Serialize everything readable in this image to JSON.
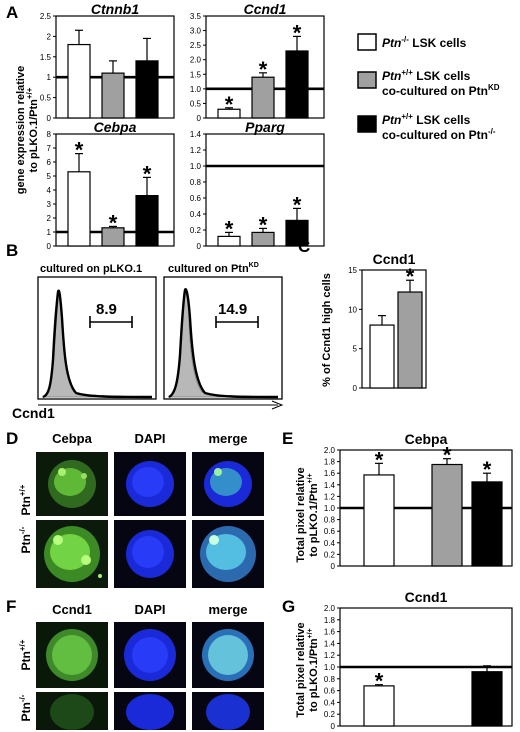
{
  "panel_letters": {
    "A": "A",
    "B": "B",
    "C": "C",
    "D": "D",
    "E": "E",
    "F": "F",
    "G": "G"
  },
  "panel_a": {
    "ylabel_line1": "gene expression relative",
    "ylabel_line2": "to pLKO.1/Ptn",
    "ylabel_sup": "+/+",
    "legend": [
      {
        "pre": "Ptn",
        "sup": "-/-",
        "post": " LSK cells",
        "line2": "",
        "line2_sup": "",
        "fill": "#ffffff"
      },
      {
        "pre": "Ptn",
        "sup": "+/+",
        "post": " LSK cells",
        "line2": "co-cultured on Ptn",
        "line2_sup": "KD",
        "fill": "#a0a0a0"
      },
      {
        "pre": "Ptn",
        "sup": "+/+",
        "post": " LSK cells",
        "line2": "co-cultured on Ptn",
        "line2_sup": "-/-",
        "fill": "#000000"
      }
    ]
  },
  "chart_data": [
    {
      "type": "bar",
      "panel": "A",
      "title": "Ctnnb1",
      "categories": [
        "Ptn-/- LSK",
        "Ptn+/+ on PtnKD",
        "Ptn+/+ on Ptn-/-"
      ],
      "values": [
        1.8,
        1.1,
        1.4
      ],
      "errors": [
        0.35,
        0.3,
        0.55
      ],
      "significant": [
        false,
        false,
        false
      ],
      "ylim": [
        0,
        2.5
      ],
      "ticks": [
        "0",
        "0.5",
        "1",
        "1.5",
        "2",
        "2.5"
      ],
      "reference_line": 1.0
    },
    {
      "type": "bar",
      "panel": "A",
      "title": "Ccnd1",
      "categories": [
        "Ptn-/- LSK",
        "Ptn+/+ on PtnKD",
        "Ptn+/+ on Ptn-/-"
      ],
      "values": [
        0.3,
        1.4,
        2.3
      ],
      "errors": [
        0.05,
        0.15,
        0.5
      ],
      "significant": [
        true,
        true,
        true
      ],
      "ylim": [
        0,
        3.5
      ],
      "ticks": [
        "0",
        "0.5",
        "1.0",
        "1.5",
        "2.0",
        "2.5",
        "3.0",
        "3.5"
      ],
      "reference_line": 1.0
    },
    {
      "type": "bar",
      "panel": "A",
      "title": "Cebpa",
      "categories": [
        "Ptn-/- LSK",
        "Ptn+/+ on PtnKD",
        "Ptn+/+ on Ptn-/-"
      ],
      "values": [
        5.3,
        1.3,
        3.6
      ],
      "errors": [
        1.3,
        0.1,
        1.3
      ],
      "significant": [
        true,
        true,
        true
      ],
      "ylim": [
        0,
        8
      ],
      "ticks": [
        "0",
        "1",
        "2",
        "3",
        "4",
        "5",
        "6",
        "7",
        "8"
      ],
      "reference_line": 1.0
    },
    {
      "type": "bar",
      "panel": "A",
      "title": "Pparg",
      "categories": [
        "Ptn-/- LSK",
        "Ptn+/+ on PtnKD",
        "Ptn+/+ on Ptn-/-"
      ],
      "values": [
        0.12,
        0.17,
        0.32
      ],
      "errors": [
        0.05,
        0.05,
        0.15
      ],
      "significant": [
        true,
        true,
        true
      ],
      "ylim": [
        0,
        1.4
      ],
      "ticks": [
        "0",
        "0.2",
        "0.4",
        "0.6",
        "0.8",
        "1.0",
        "1.2",
        "1.4"
      ],
      "reference_line": 1.0
    },
    {
      "type": "bar",
      "panel": "C",
      "title": "Ccnd1",
      "ylabel": "% of Ccnd1 high cells",
      "values": [
        8,
        12.2
      ],
      "errors": [
        1.2,
        1.5
      ],
      "fills": [
        "#ffffff",
        "#a0a0a0"
      ],
      "significant": [
        false,
        true
      ],
      "ylim": [
        0,
        15
      ],
      "ticks": [
        "0",
        "5",
        "10",
        "15"
      ]
    },
    {
      "type": "bar",
      "panel": "E",
      "title": "Cebpa",
      "values": [
        1.57,
        1.75,
        1.45
      ],
      "errors": [
        0.2,
        0.1,
        0.15
      ],
      "fills": [
        "#ffffff",
        "#a0a0a0",
        "#000000"
      ],
      "significant": [
        true,
        true,
        true
      ],
      "ylim": [
        0,
        2.0
      ],
      "ticks": [
        "0",
        "0.2",
        "0.4",
        "0.6",
        "0.8",
        "1.0",
        "1.2",
        "1.4",
        "1.6",
        "1.8",
        "2.0"
      ],
      "reference_line": 1.0
    },
    {
      "type": "bar",
      "panel": "G",
      "title": "Ccnd1",
      "values": [
        0.68,
        null,
        0.92
      ],
      "errors": [
        0.02,
        0,
        0.1
      ],
      "fills": [
        "#ffffff",
        "#a0a0a0",
        "#000000"
      ],
      "significant": [
        true,
        false,
        false
      ],
      "ylim": [
        0,
        2.0
      ],
      "ticks": [
        "0",
        "0.2",
        "0.4",
        "0.6",
        "0.8",
        "1.0",
        "1.2",
        "1.4",
        "1.6",
        "1.8",
        "2.0"
      ],
      "reference_line": 1.0
    }
  ],
  "panel_b": {
    "label_left": "cultured on pLKO.1",
    "label_right_pre": "cultured on Ptn",
    "label_right_sup": "KD",
    "value_left": "8.9",
    "value_right": "14.9",
    "xaxis_label": "Ccnd1"
  },
  "panel_e": {
    "ylabel_line1": "Total pixel relative",
    "ylabel_line2": "to pLKO.1/Ptn",
    "ylabel_sup": "+/+"
  },
  "panel_g": {
    "ylabel_line1": "Total pixel relative",
    "ylabel_line2": "to pLKO.1/Ptn",
    "ylabel_sup": "+/+"
  },
  "panel_d": {
    "columns": [
      "Cebpa",
      "DAPI",
      "merge"
    ],
    "rows": [
      {
        "pre": "Ptn",
        "sup": "+/+"
      },
      {
        "pre": "Ptn",
        "sup": "-/-"
      }
    ]
  },
  "panel_f": {
    "columns": [
      "Ccnd1",
      "DAPI",
      "merge"
    ],
    "rows": [
      {
        "pre": "Ptn",
        "sup": "+/+"
      },
      {
        "pre": "Ptn",
        "sup": "-/-"
      }
    ]
  },
  "significance_marker": "*"
}
